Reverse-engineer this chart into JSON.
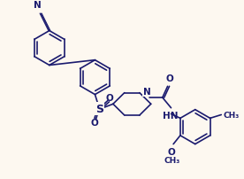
{
  "bg_color": "#fdf8f0",
  "line_color": "#1a1a6e",
  "lw": 1.2,
  "figsize": [
    2.76,
    2.03
  ],
  "dpi": 100,
  "xlim": [
    0,
    276
  ],
  "ylim": [
    0,
    203
  ],
  "font_size_label": 7.5,
  "font_size_small": 6.5
}
